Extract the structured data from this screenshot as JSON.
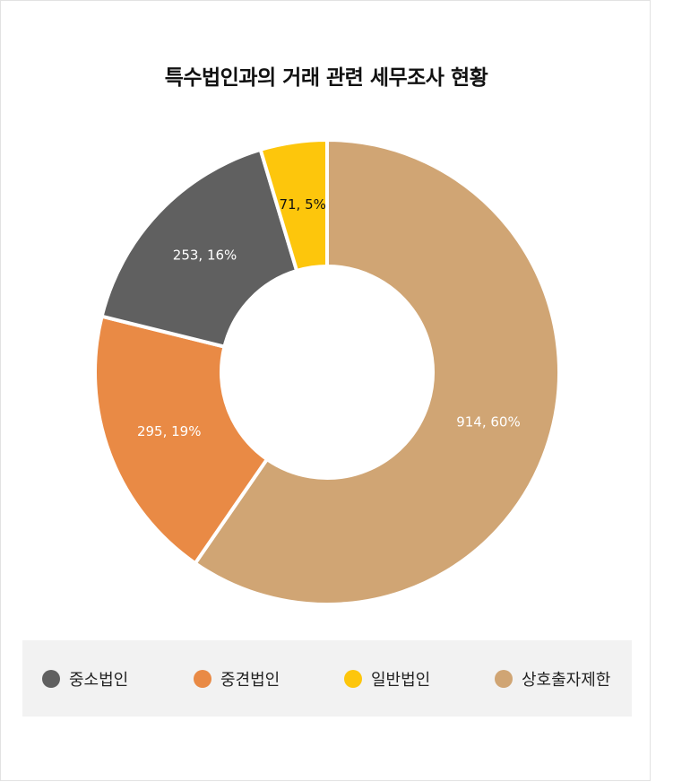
{
  "chart_data": {
    "type": "pie",
    "title": "특수법인과의 거래 관련 세무조사 현황",
    "categories": [
      "상호출자제한",
      "중견법인",
      "중소법인",
      "일반법인"
    ],
    "values": [
      914,
      295,
      253,
      71
    ],
    "labels": [
      "914, 60%",
      "295, 19%",
      "253, 16%",
      "71, 5%"
    ],
    "colors": [
      "#d0a574",
      "#e98a45",
      "#606060",
      "#fdc60c"
    ],
    "label_colors": [
      "#ffffff",
      "#ffffff",
      "#ffffff",
      "#111111"
    ],
    "legend_position": "bottom"
  },
  "legend": {
    "items": [
      {
        "label": "중소법인",
        "color": "#606060"
      },
      {
        "label": "중견법인",
        "color": "#e98a45"
      },
      {
        "label": "일반법인",
        "color": "#fdc60c"
      },
      {
        "label": "상호출자제한",
        "color": "#d0a574"
      }
    ]
  }
}
